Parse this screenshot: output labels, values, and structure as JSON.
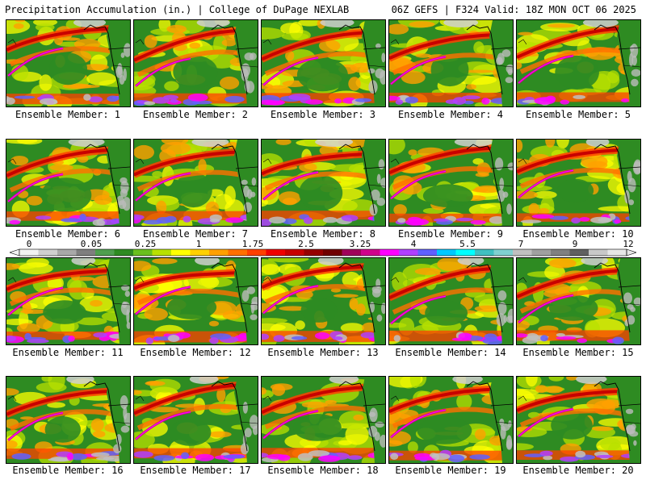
{
  "header": {
    "left": "Precipitation Accumulation (in.) | College of DuPage NEXLAB",
    "right": "06Z GEFS | F324 Valid: 18Z MON OCT 06 2025"
  },
  "colorbar": {
    "tick_labels": [
      "0",
      "0.05",
      "0.25",
      "1",
      "1.75",
      "2.5",
      "3.25",
      "4",
      "5.5",
      "7",
      "9",
      "12"
    ],
    "colors": [
      "#f2f2f2",
      "#cfcfcf",
      "#a8a8a8",
      "#7f7f7f",
      "#4f9f4f",
      "#2e8b22",
      "#6abf1e",
      "#b8e000",
      "#ffff00",
      "#ffd000",
      "#ffa000",
      "#ff7000",
      "#ff4000",
      "#f00000",
      "#c80000",
      "#960000",
      "#700000",
      "#a0005a",
      "#d0008c",
      "#ff00ff",
      "#b040ff",
      "#6060ff",
      "#00c8ff",
      "#00ffff",
      "#40c0c0",
      "#80d0d0",
      "#c0c0c0",
      "#a0a0a0",
      "#808080",
      "#606060",
      "#c8c8c8",
      "#e6e6e6"
    ]
  },
  "panels": [
    {
      "label": "Ensemble Member: 1"
    },
    {
      "label": "Ensemble Member: 2"
    },
    {
      "label": "Ensemble Member: 3"
    },
    {
      "label": "Ensemble Member: 4"
    },
    {
      "label": "Ensemble Member: 5"
    },
    {
      "label": "Ensemble Member: 6"
    },
    {
      "label": "Ensemble Member: 7"
    },
    {
      "label": "Ensemble Member: 8"
    },
    {
      "label": "Ensemble Member: 9"
    },
    {
      "label": "Ensemble Member: 10"
    },
    {
      "label": "Ensemble Member: 11"
    },
    {
      "label": "Ensemble Member: 12"
    },
    {
      "label": "Ensemble Member: 13"
    },
    {
      "label": "Ensemble Member: 14"
    },
    {
      "label": "Ensemble Member: 15"
    },
    {
      "label": "Ensemble Member: 16"
    },
    {
      "label": "Ensemble Member: 17"
    },
    {
      "label": "Ensemble Member: 18"
    },
    {
      "label": "Ensemble Member: 19"
    },
    {
      "label": "Ensemble Member: 20"
    }
  ]
}
